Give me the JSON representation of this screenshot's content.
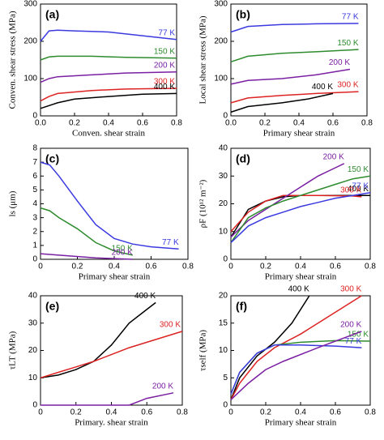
{
  "chart_data": [
    {
      "type": "line",
      "panel_label": "(a)",
      "xlabel": "Conven. shear strain",
      "ylabel": "Conven. shear stress (MPa)",
      "xlim": [
        0,
        0.8
      ],
      "ylim": [
        0,
        300
      ],
      "xticks": [
        {
          "value": 0,
          "label": "0.0"
        },
        0.2,
        0.4,
        0.6,
        0.8
      ],
      "yticks": [
        0,
        100,
        200,
        300
      ],
      "series": [
        {
          "name": "77 K",
          "color": "#3a3ae0",
          "x": [
            0,
            0.05,
            0.1,
            0.2,
            0.4,
            0.6,
            0.8
          ],
          "values": [
            200,
            228,
            230,
            228,
            225,
            215,
            205
          ]
        },
        {
          "name": "150 K",
          "color": "#2e8b2e",
          "x": [
            0,
            0.05,
            0.1,
            0.3,
            0.5,
            0.8
          ],
          "values": [
            150,
            158,
            160,
            160,
            157,
            155
          ]
        },
        {
          "name": "200 K",
          "color": "#7a1fa2",
          "x": [
            0,
            0.05,
            0.1,
            0.3,
            0.5,
            0.8
          ],
          "values": [
            90,
            100,
            105,
            110,
            115,
            118
          ]
        },
        {
          "name": "300 K",
          "color": "#dd2222",
          "x": [
            0,
            0.05,
            0.1,
            0.3,
            0.5,
            0.8
          ],
          "values": [
            40,
            52,
            60,
            68,
            72,
            74
          ]
        },
        {
          "name": "400 K",
          "color": "#000000",
          "x": [
            0,
            0.1,
            0.2,
            0.4,
            0.6,
            0.8
          ],
          "values": [
            20,
            35,
            45,
            52,
            58,
            60
          ]
        }
      ]
    },
    {
      "type": "line",
      "panel_label": "(b)",
      "xlabel": "Primary shear strain",
      "ylabel": "Local shear stress (MPa)",
      "xlim": [
        0,
        0.8
      ],
      "ylim": [
        0,
        300
      ],
      "xticks": [
        {
          "value": 0,
          "label": "0.0"
        },
        0.2,
        0.4,
        0.6,
        0.8
      ],
      "yticks": [
        0,
        100,
        200,
        300
      ],
      "series": [
        {
          "name": "77 K",
          "color": "#3a3ae0",
          "x": [
            0,
            0.1,
            0.3,
            0.5,
            0.75
          ],
          "values": [
            225,
            240,
            245,
            247,
            248
          ]
        },
        {
          "name": "150 K",
          "color": "#2e8b2e",
          "x": [
            0,
            0.1,
            0.3,
            0.5,
            0.75
          ],
          "values": [
            145,
            160,
            168,
            172,
            178
          ]
        },
        {
          "name": "200 K",
          "color": "#7a1fa2",
          "x": [
            0,
            0.1,
            0.3,
            0.5,
            0.7
          ],
          "values": [
            85,
            95,
            100,
            110,
            125
          ]
        },
        {
          "name": "300 K",
          "color": "#dd2222",
          "x": [
            0,
            0.1,
            0.3,
            0.5,
            0.75
          ],
          "values": [
            35,
            48,
            55,
            60,
            65
          ]
        },
        {
          "name": "400 K",
          "color": "#000000",
          "x": [
            0,
            0.1,
            0.3,
            0.45,
            0.6
          ],
          "values": [
            10,
            25,
            35,
            45,
            60
          ]
        }
      ]
    },
    {
      "type": "line",
      "panel_label": "(c)",
      "xlabel": "Primary shear strain",
      "ylabel": "ls (μm)",
      "xlim": [
        0,
        0.8
      ],
      "ylim": [
        0,
        8
      ],
      "xticks": [
        0,
        0.2,
        0.4,
        0.6,
        0.8
      ],
      "yticks": [
        0,
        1,
        2,
        3,
        4,
        5,
        6,
        7,
        8
      ],
      "series": [
        {
          "name": "77 K",
          "color": "#3a3ae0",
          "x": [
            0,
            0.05,
            0.1,
            0.2,
            0.3,
            0.4,
            0.5,
            0.6,
            0.75
          ],
          "values": [
            7.0,
            6.8,
            6.0,
            4.2,
            2.5,
            1.5,
            1.1,
            0.9,
            0.75
          ]
        },
        {
          "name": "150 K",
          "color": "#2e8b2e",
          "x": [
            0,
            0.05,
            0.1,
            0.2,
            0.3,
            0.4,
            0.5
          ],
          "values": [
            3.7,
            3.5,
            3.0,
            2.2,
            1.2,
            0.6,
            0.3
          ]
        },
        {
          "name": "200 K",
          "color": "#7a1fa2",
          "x": [
            0,
            0.1,
            0.3,
            0.5
          ],
          "values": [
            0.4,
            0.3,
            0.1,
            0
          ]
        }
      ]
    },
    {
      "type": "line",
      "panel_label": "(d)",
      "xlabel": "Primary shear strain",
      "ylabel": "ρF (10¹² m⁻²)",
      "xlim": [
        0,
        0.8
      ],
      "ylim": [
        0,
        40
      ],
      "xticks": [
        0,
        0.2,
        0.4,
        0.6,
        0.8
      ],
      "yticks": [
        0,
        10,
        20,
        30,
        40
      ],
      "series": [
        {
          "name": "400 K",
          "color": "#000000",
          "x": [
            0,
            0.1,
            0.2,
            0.3,
            0.4,
            0.6,
            0.8
          ],
          "values": [
            8,
            18,
            21,
            22.5,
            23,
            23,
            23
          ]
        },
        {
          "name": "300 K",
          "color": "#dd2222",
          "x": [
            0,
            0.1,
            0.2,
            0.3,
            0.5,
            0.7,
            0.75
          ],
          "values": [
            10,
            17,
            21,
            23,
            23,
            22.8,
            22.5
          ]
        },
        {
          "name": "200 K",
          "color": "#7a1fa2",
          "x": [
            0,
            0.1,
            0.2,
            0.3,
            0.4,
            0.5,
            0.6,
            0.65
          ],
          "values": [
            8,
            14,
            18,
            22,
            26,
            30,
            33,
            34.5
          ]
        },
        {
          "name": "150 K",
          "color": "#2e8b2e",
          "x": [
            0,
            0.1,
            0.2,
            0.3,
            0.4,
            0.5,
            0.6,
            0.7,
            0.8
          ],
          "values": [
            6,
            15,
            18.5,
            21,
            23,
            25,
            27,
            29,
            30
          ]
        },
        {
          "name": "77 K",
          "color": "#3a3ae0",
          "x": [
            0,
            0.1,
            0.2,
            0.3,
            0.4,
            0.5,
            0.6,
            0.7,
            0.8
          ],
          "values": [
            6,
            12,
            15,
            17,
            19,
            20.5,
            22,
            23,
            24
          ]
        }
      ]
    },
    {
      "type": "line",
      "panel_label": "(e)",
      "xlabel": "Primary. shear strain",
      "ylabel": "τLT (MPa)",
      "xlim": [
        0,
        0.8
      ],
      "ylim": [
        0,
        40
      ],
      "xticks": [
        0,
        0.2,
        0.4,
        0.6,
        0.8
      ],
      "yticks": [
        0,
        10,
        20,
        30,
        40
      ],
      "series": [
        {
          "name": "400 K",
          "color": "#000000",
          "x": [
            0,
            0.1,
            0.2,
            0.3,
            0.4,
            0.5,
            0.6,
            0.65
          ],
          "values": [
            10,
            11,
            13,
            16,
            22,
            30,
            35,
            37.5
          ]
        },
        {
          "name": "300 K",
          "color": "#dd2222",
          "x": [
            0,
            0.1,
            0.2,
            0.3,
            0.4,
            0.5,
            0.6,
            0.7,
            0.8
          ],
          "values": [
            10,
            12,
            14,
            16,
            18.5,
            21,
            23,
            25,
            27
          ]
        },
        {
          "name": "200 K",
          "color": "#7a1fa2",
          "x": [
            0,
            0.5,
            0.6,
            0.75
          ],
          "values": [
            0,
            0,
            2.5,
            4.5
          ]
        }
      ]
    },
    {
      "type": "line",
      "panel_label": "(f)",
      "xlabel": "Primary shear strain",
      "ylabel": "τself (MPa)",
      "xlim": [
        0,
        0.8
      ],
      "ylim": [
        0,
        20
      ],
      "xticks": [
        0,
        0.2,
        0.4,
        0.6,
        0.8
      ],
      "yticks": [
        0,
        5,
        10,
        15,
        20
      ],
      "series": [
        {
          "name": "400 K",
          "color": "#000000",
          "x": [
            0,
            0.05,
            0.15,
            0.25,
            0.35,
            0.45
          ],
          "values": [
            1,
            5,
            9,
            11.5,
            15,
            20
          ]
        },
        {
          "name": "300 K",
          "color": "#dd2222",
          "x": [
            0,
            0.05,
            0.15,
            0.25,
            0.4,
            0.55,
            0.65,
            0.75
          ],
          "values": [
            1,
            4,
            8,
            10.5,
            13,
            16,
            18,
            20
          ]
        },
        {
          "name": "150 K",
          "color": "#2e8b2e",
          "x": [
            0,
            0.05,
            0.15,
            0.25,
            0.4,
            0.6,
            0.8
          ],
          "values": [
            2,
            6,
            9.5,
            11,
            11.5,
            11.8,
            11.7
          ]
        },
        {
          "name": "77 K",
          "color": "#3a3ae0",
          "x": [
            0,
            0.05,
            0.15,
            0.25,
            0.4,
            0.6,
            0.75
          ],
          "values": [
            2,
            6,
            9.5,
            11,
            11,
            10.8,
            10.5
          ]
        },
        {
          "name": "200 K",
          "color": "#7a1fa2",
          "x": [
            0,
            0.1,
            0.2,
            0.3,
            0.5,
            0.75
          ],
          "values": [
            1,
            4,
            6.5,
            8,
            10.5,
            13.5
          ]
        }
      ]
    }
  ]
}
